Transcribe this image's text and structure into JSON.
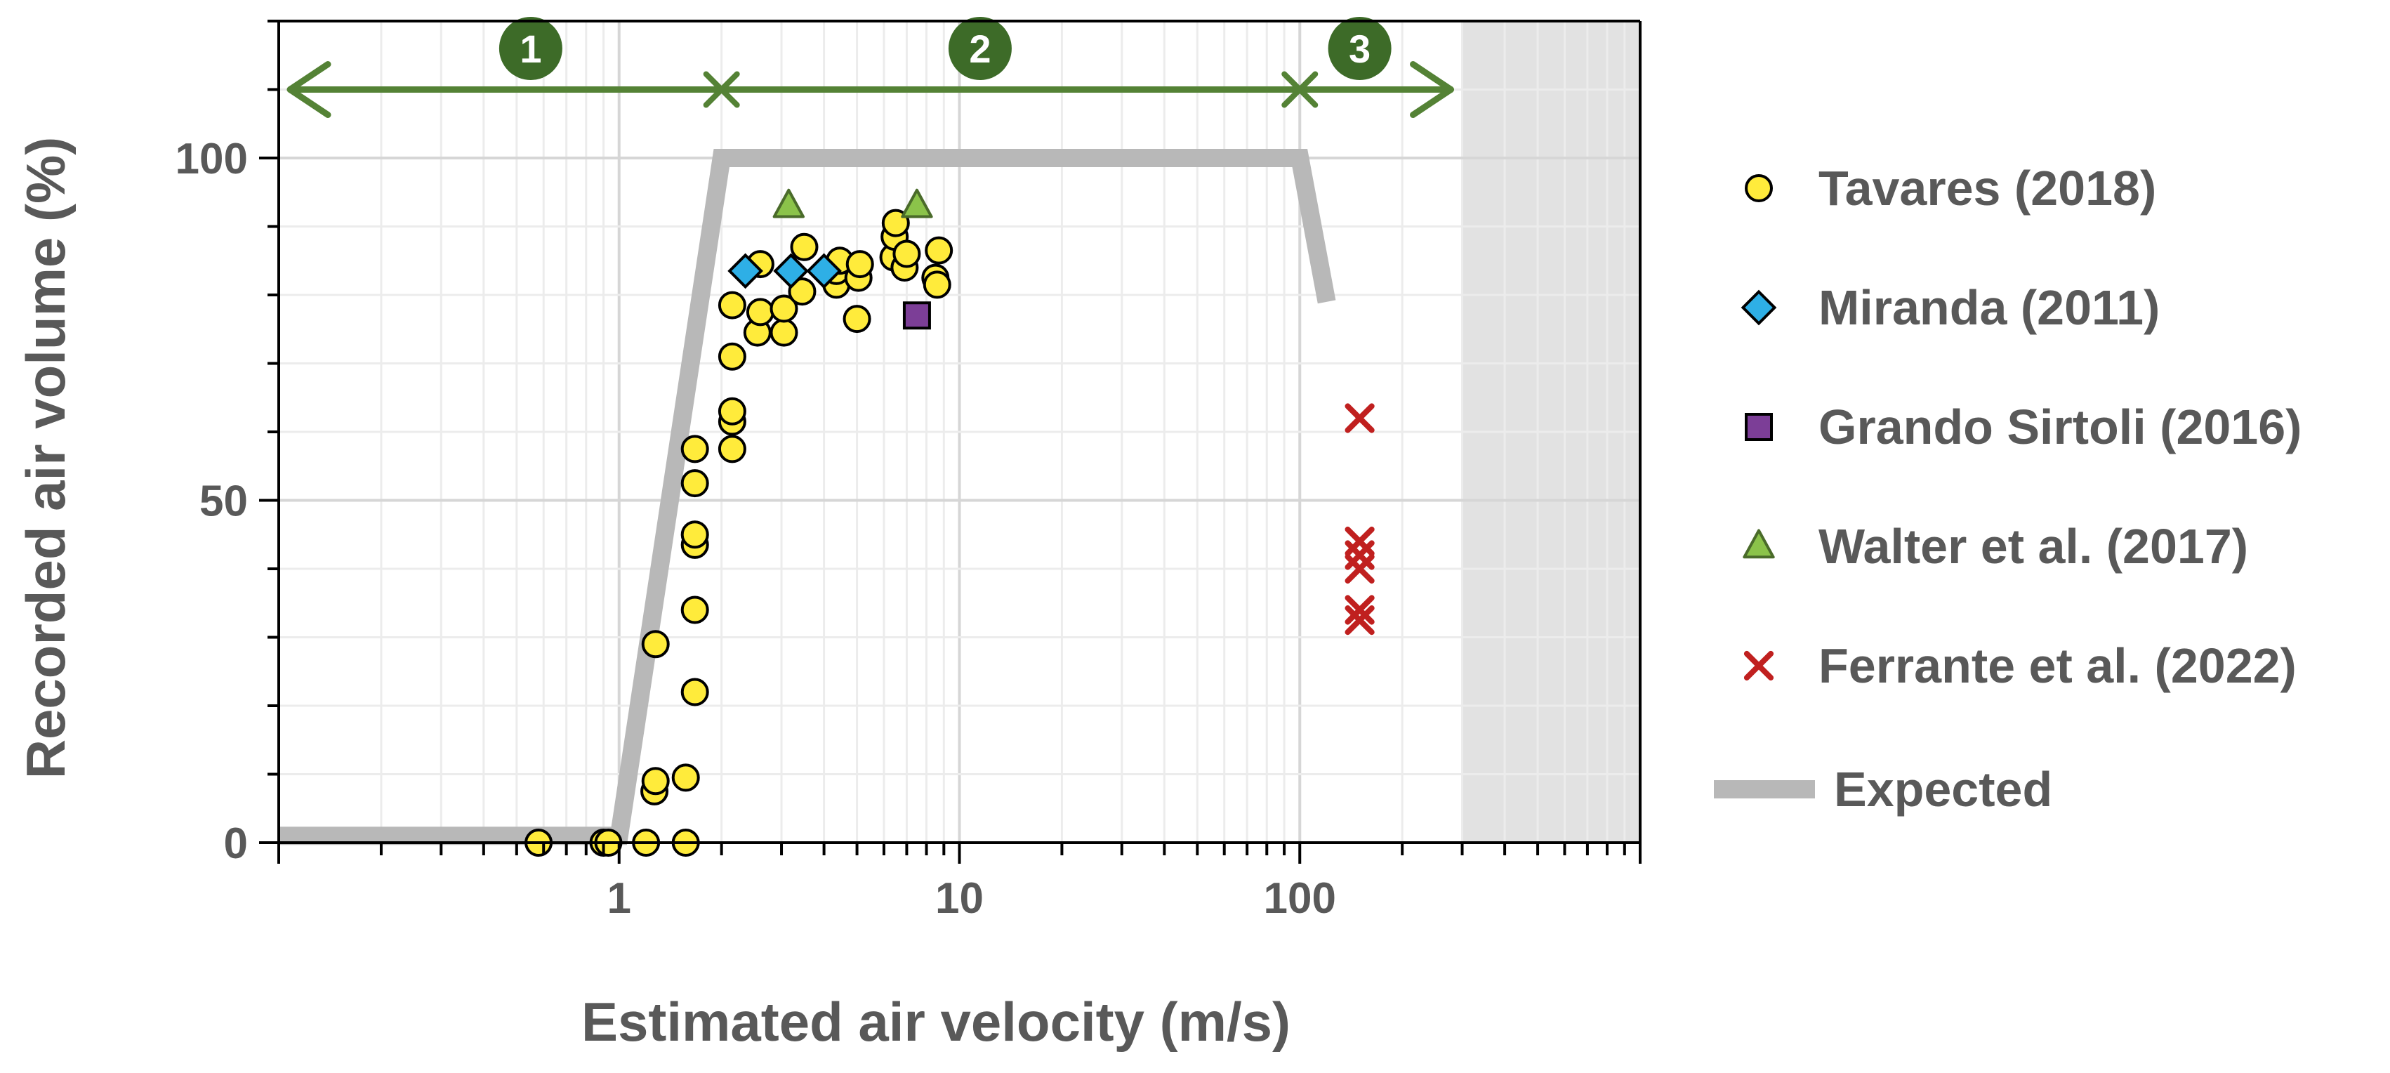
{
  "chart_data": {
    "type": "scatter",
    "title": "",
    "xlabel": "Estimated air velocity (m/s)",
    "ylabel": "Recorded air volume (%)",
    "xscale": "log",
    "xlim": [
      0.1,
      1000
    ],
    "ylim": [
      0,
      120
    ],
    "x_tick_labels": [
      {
        "value": 1,
        "label": "1"
      },
      {
        "value": 10,
        "label": "10"
      },
      {
        "value": 100,
        "label": "100"
      }
    ],
    "y_tick_labels": [
      {
        "value": 0,
        "label": "0"
      },
      {
        "value": 50,
        "label": "50"
      },
      {
        "value": 100,
        "label": "100"
      }
    ],
    "grid": true,
    "legend_position": "right",
    "shaded_region": {
      "x_from": 300,
      "x_to": 1000,
      "color": "#e2e2e2"
    },
    "zones": {
      "arrow_color": "#548235",
      "arrow_y": 110,
      "arrow_from": 0.1,
      "arrow_to": 300,
      "boundaries": [
        2,
        100
      ],
      "markers": [
        {
          "label": "1",
          "x": 0.55,
          "y": 116
        },
        {
          "label": "2",
          "x": 11.5,
          "y": 116
        },
        {
          "label": "3",
          "x": 150,
          "y": 116
        }
      ]
    },
    "series": [
      {
        "name": "Tavares (2018)",
        "marker": "circle",
        "color": "#ffeb3b",
        "edge": "#000000",
        "points": [
          [
            0.58,
            0
          ],
          [
            0.9,
            0
          ],
          [
            0.93,
            0
          ],
          [
            1.2,
            0
          ],
          [
            1.57,
            0
          ],
          [
            1.27,
            7.5
          ],
          [
            1.28,
            9
          ],
          [
            1.57,
            9.5
          ],
          [
            1.28,
            29
          ],
          [
            1.67,
            22
          ],
          [
            1.67,
            34
          ],
          [
            1.67,
            43.5
          ],
          [
            1.67,
            45
          ],
          [
            1.67,
            52.5
          ],
          [
            1.67,
            57.5
          ],
          [
            2.15,
            57.5
          ],
          [
            2.15,
            61.5
          ],
          [
            2.15,
            63
          ],
          [
            2.15,
            71
          ],
          [
            2.15,
            78.5
          ],
          [
            2.55,
            74.5
          ],
          [
            2.6,
            77.5
          ],
          [
            2.6,
            84.5
          ],
          [
            3.05,
            74.5
          ],
          [
            3.05,
            78
          ],
          [
            3.45,
            80.5
          ],
          [
            3.5,
            87
          ],
          [
            4.35,
            81.5
          ],
          [
            4.35,
            83.5
          ],
          [
            4.45,
            85
          ],
          [
            5.0,
            76.5
          ],
          [
            5.05,
            82.5
          ],
          [
            5.1,
            84.5
          ],
          [
            6.4,
            85.5
          ],
          [
            6.45,
            88.5
          ],
          [
            6.5,
            90.5
          ],
          [
            6.9,
            84
          ],
          [
            7.0,
            86
          ],
          [
            8.5,
            82.5
          ],
          [
            8.6,
            81.5
          ],
          [
            8.7,
            86.5
          ]
        ]
      },
      {
        "name": "Miranda (2011)",
        "marker": "diamond",
        "color": "#2eafe6",
        "edge": "#000000",
        "points": [
          [
            2.35,
            83.5
          ],
          [
            3.2,
            83.5
          ],
          [
            4.0,
            83.5
          ]
        ]
      },
      {
        "name": "Grando Sirtoli (2016)",
        "marker": "square",
        "color": "#7c3e97",
        "edge": "#000000",
        "points": [
          [
            7.5,
            77
          ]
        ]
      },
      {
        "name": "Walter et al. (2017)",
        "marker": "triangle",
        "color": "#8bc34a",
        "edge": "#4a6b2a",
        "points": [
          [
            3.15,
            93
          ],
          [
            7.5,
            93
          ]
        ]
      },
      {
        "name": "Ferrante et al. (2022)",
        "marker": "x",
        "color": "#c0201f",
        "edge": "#c0201f",
        "points": [
          [
            150,
            62
          ],
          [
            150,
            44
          ],
          [
            150,
            42
          ],
          [
            150,
            40
          ],
          [
            150,
            34
          ],
          [
            150,
            32.5
          ]
        ]
      },
      {
        "name": "Expected",
        "marker": "line",
        "color": "#b8b8b8",
        "edge": "#b8b8b8",
        "points": [
          [
            0.1,
            1
          ],
          [
            1.0,
            1
          ],
          [
            2.0,
            100
          ],
          [
            100,
            100
          ],
          [
            120,
            79
          ]
        ]
      }
    ]
  }
}
